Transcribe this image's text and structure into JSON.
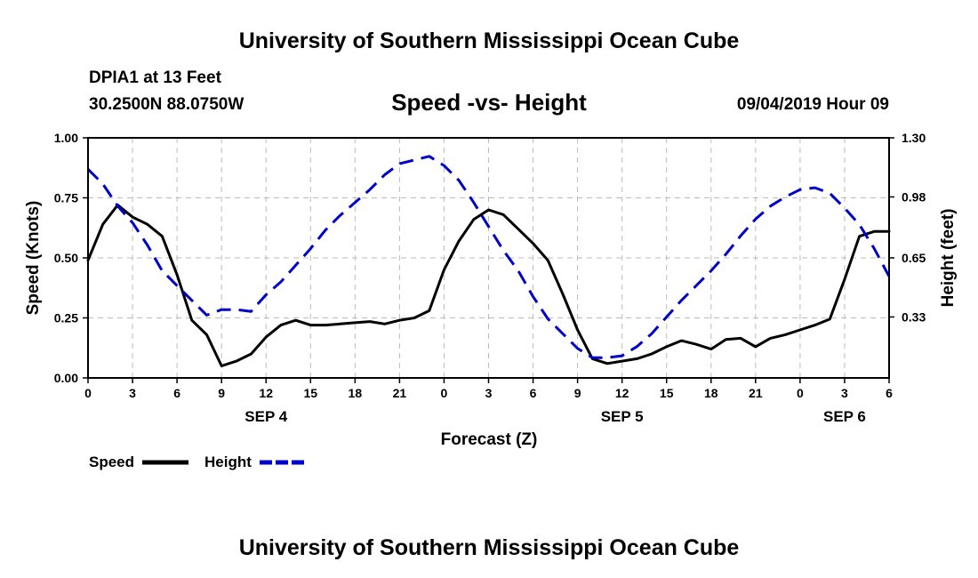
{
  "header": {
    "title_top": "University of Southern Mississippi Ocean Cube",
    "title_bottom": "University of Southern Mississippi Ocean Cube",
    "station": "DPIA1 at 13 Feet",
    "location": "30.2500N 88.0750W",
    "datetime": "09/04/2019 Hour 09"
  },
  "chart_data": {
    "type": "line",
    "title": "Speed -vs- Height",
    "xlabel": "Forecast (Z)",
    "ylabel": "Speed (Knots)",
    "y2label": "Height (feet)",
    "xlim": [
      0,
      54
    ],
    "ylim": [
      0,
      1
    ],
    "y2lim": [
      0,
      1.3
    ],
    "grid": true,
    "x_ticks": [
      0,
      3,
      6,
      9,
      12,
      15,
      18,
      21,
      24,
      27,
      30,
      33,
      36,
      39,
      42,
      45,
      48,
      51,
      54
    ],
    "x_tick_labels": [
      "0",
      "3",
      "6",
      "9",
      "12",
      "15",
      "18",
      "21",
      "0",
      "3",
      "6",
      "9",
      "12",
      "15",
      "18",
      "21",
      "0",
      "3",
      "6"
    ],
    "y_ticks": [
      0,
      0.25,
      0.5,
      0.75,
      1.0
    ],
    "y_tick_labels": [
      "0.00",
      "0.25",
      "0.50",
      "0.75",
      "1.00"
    ],
    "y2_ticks": [
      0.33,
      0.65,
      0.98,
      1.3
    ],
    "y2_tick_labels": [
      "0.33",
      "0.65",
      "0.98",
      "1.30"
    ],
    "date_labels": [
      {
        "x": 12,
        "label": "SEP 4"
      },
      {
        "x": 36,
        "label": "SEP 5"
      },
      {
        "x": 51,
        "label": "SEP 6"
      }
    ],
    "series": [
      {
        "name": "Speed",
        "color": "#000000",
        "dash": "solid",
        "axis": "left",
        "x": [
          0,
          1,
          2,
          3,
          4,
          5,
          6,
          7,
          8,
          9,
          10,
          11,
          12,
          13,
          14,
          15,
          16,
          17,
          18,
          19,
          20,
          21,
          22,
          23,
          24,
          25,
          26,
          27,
          28,
          29,
          30,
          31,
          32,
          33,
          34,
          35,
          36,
          37,
          38,
          39,
          40,
          41,
          42,
          43,
          44,
          45,
          46,
          47,
          48,
          49,
          50,
          51,
          52,
          53,
          54
        ],
        "values": [
          0.49,
          0.64,
          0.72,
          0.67,
          0.64,
          0.59,
          0.43,
          0.24,
          0.18,
          0.05,
          0.07,
          0.1,
          0.17,
          0.22,
          0.24,
          0.22,
          0.22,
          0.225,
          0.23,
          0.235,
          0.225,
          0.24,
          0.25,
          0.28,
          0.45,
          0.57,
          0.66,
          0.7,
          0.68,
          0.62,
          0.56,
          0.49,
          0.35,
          0.2,
          0.08,
          0.06,
          0.07,
          0.08,
          0.1,
          0.13,
          0.155,
          0.14,
          0.12,
          0.16,
          0.165,
          0.13,
          0.165,
          0.18,
          0.2,
          0.22,
          0.245,
          0.41,
          0.59,
          0.61,
          0.61
        ]
      },
      {
        "name": "Height",
        "color": "#0000cc",
        "dash": "dashed",
        "axis": "right",
        "x": [
          0,
          1,
          2,
          3,
          4,
          5,
          6,
          7,
          8,
          9,
          10,
          11,
          12,
          13,
          14,
          15,
          16,
          17,
          18,
          19,
          20,
          21,
          22,
          23,
          24,
          25,
          26,
          27,
          28,
          29,
          30,
          31,
          32,
          33,
          34,
          35,
          36,
          37,
          38,
          39,
          40,
          41,
          42,
          43,
          44,
          45,
          46,
          47,
          48,
          49,
          50,
          51,
          52,
          53,
          54
        ],
        "values": [
          1.13,
          1.05,
          0.93,
          0.84,
          0.72,
          0.58,
          0.5,
          0.42,
          0.34,
          0.37,
          0.37,
          0.36,
          0.45,
          0.52,
          0.61,
          0.7,
          0.8,
          0.88,
          0.95,
          1.02,
          1.1,
          1.16,
          1.18,
          1.2,
          1.15,
          1.07,
          0.95,
          0.82,
          0.69,
          0.58,
          0.44,
          0.32,
          0.24,
          0.16,
          0.11,
          0.11,
          0.12,
          0.17,
          0.24,
          0.33,
          0.42,
          0.5,
          0.58,
          0.67,
          0.77,
          0.86,
          0.93,
          0.98,
          1.02,
          1.03,
          1.0,
          0.92,
          0.83,
          0.7,
          0.55
        ]
      }
    ],
    "legend": [
      {
        "label": "Speed",
        "color": "#000000",
        "dash": "solid"
      },
      {
        "label": "Height",
        "color": "#0000cc",
        "dash": "dashed"
      }
    ],
    "legend_position": "bottom-left"
  }
}
